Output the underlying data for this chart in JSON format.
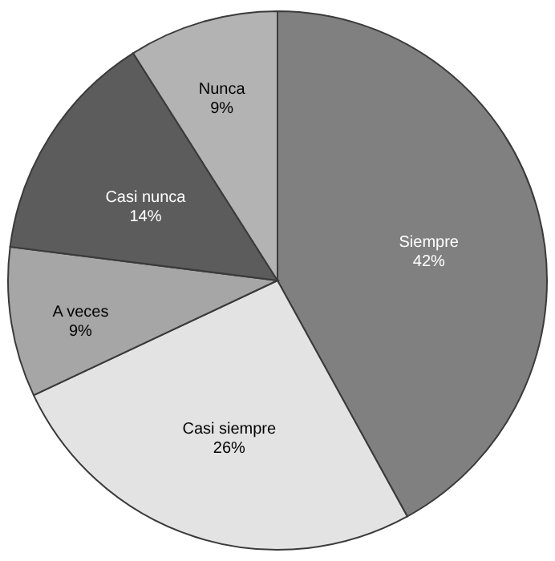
{
  "chart_data": {
    "type": "pie",
    "categories": [
      "Siempre",
      "Casi siempre",
      "A veces",
      "Casi nunca",
      "Nunca"
    ],
    "values": [
      42,
      26,
      9,
      14,
      9
    ],
    "value_labels": [
      "42%",
      "26%",
      "9%",
      "14%",
      "9%"
    ],
    "colors": [
      "#808080",
      "#e3e3e3",
      "#a6a6a6",
      "#5c5c5c",
      "#b3b3b3"
    ],
    "legend": false
  }
}
